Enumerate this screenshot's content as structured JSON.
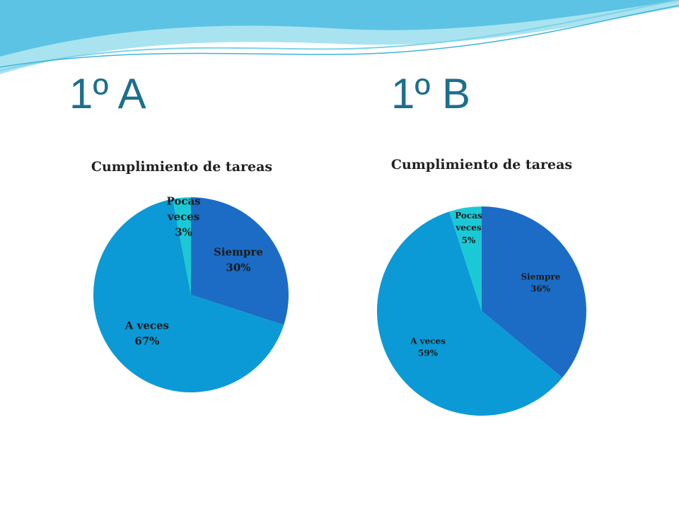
{
  "headings": [
    "1º A",
    "1º B"
  ],
  "chart_data": [
    {
      "type": "pie",
      "title": "Cumplimiento de tareas",
      "categories": [
        "Siempre",
        "A veces",
        "Pocas veces"
      ],
      "values": [
        30,
        67,
        3
      ],
      "value_labels": [
        "30%",
        "67%",
        "3%"
      ],
      "colors": [
        "#1c6cc6",
        "#0b9ad6",
        "#1bc9d6"
      ]
    },
    {
      "type": "pie",
      "title": "Cumplimiento de tareas",
      "categories": [
        "Siempre",
        "A veces",
        "Pocas veces"
      ],
      "values": [
        36,
        59,
        5
      ],
      "value_labels": [
        "36%",
        "59%",
        "5%"
      ],
      "colors": [
        "#1c6cc6",
        "#0b9ad6",
        "#1bc9d6"
      ]
    }
  ]
}
